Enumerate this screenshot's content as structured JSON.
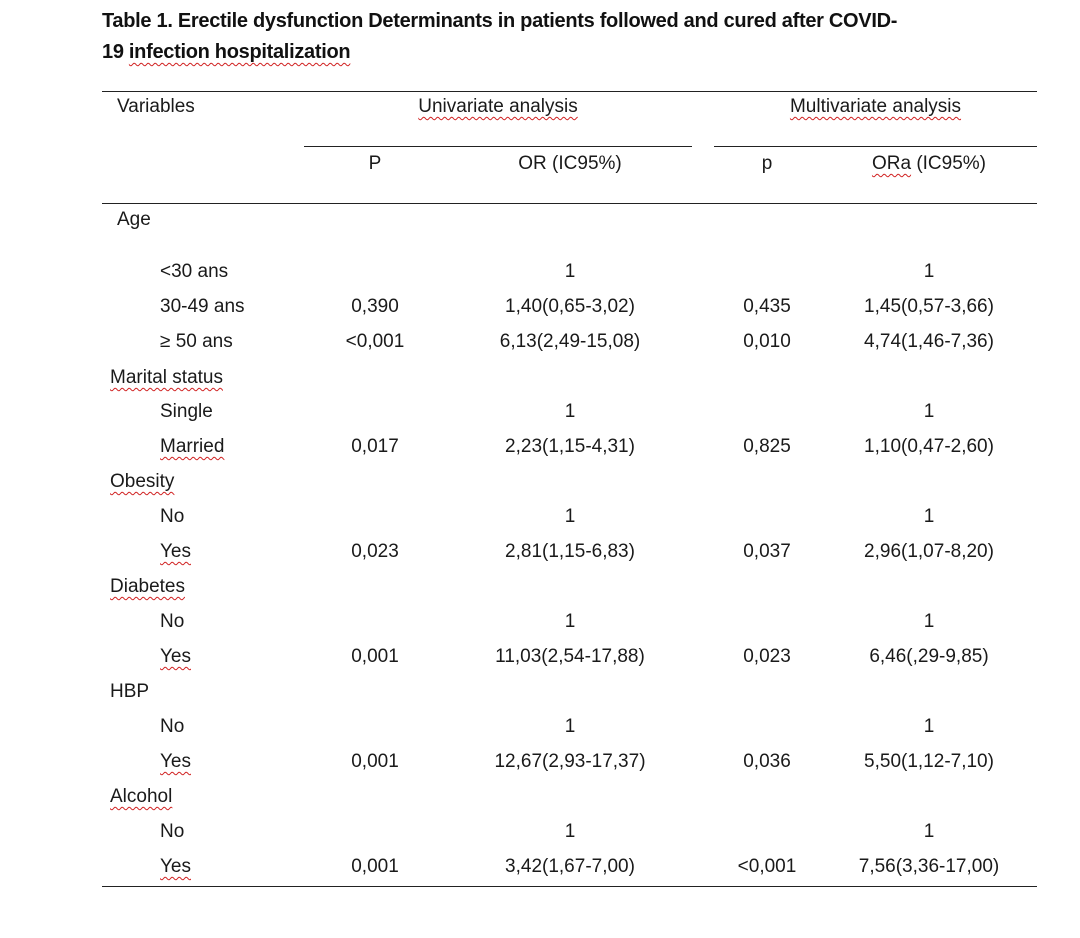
{
  "caption": {
    "line1": "Table 1. Erectile dysfunction Determinants in patients followed and cured after COVID-",
    "line2_prefix": "19 ",
    "line2_underlined": "infection  hospitalization"
  },
  "header": {
    "variables": "Variables",
    "univariate": "Univariate analysis",
    "multivariate": "Multivariate analysis",
    "p": "P",
    "or": "OR (IC95%)",
    "p2": "p",
    "ora_prefix": "ORa",
    "ora_suffix": " (IC95%)"
  },
  "rows": [
    {
      "label": "Age",
      "kind": "group",
      "p": "",
      "or": "",
      "p2": "",
      "ora": ""
    },
    {
      "label": "<30 ans",
      "kind": "sub",
      "p": "",
      "or": "1",
      "p2": "",
      "ora": "1"
    },
    {
      "label": "30-49 ans",
      "kind": "sub",
      "p": "0,390",
      "or": "1,40(0,65-3,02)",
      "p2": "0,435",
      "ora": "1,45(0,57-3,66)"
    },
    {
      "label": "≥ 50 ans",
      "kind": "sub",
      "p": "<0,001",
      "or": "6,13(2,49-15,08)",
      "p2": "0,010",
      "ora": "4,74(1,46-7,36)"
    },
    {
      "label": "Marital status",
      "kind": "group",
      "p": "",
      "or": "",
      "p2": "",
      "ora": ""
    },
    {
      "label": "Single",
      "kind": "sub",
      "p": "",
      "or": "1",
      "p2": "",
      "ora": "1"
    },
    {
      "label": "Married",
      "kind": "sub",
      "p": "0,017",
      "or": "2,23(1,15-4,31)",
      "p2": "0,825",
      "ora": "1,10(0,47-2,60)"
    },
    {
      "label": "Obesity",
      "kind": "group",
      "p": "",
      "or": "",
      "p2": "",
      "ora": ""
    },
    {
      "label": "No",
      "kind": "sub",
      "p": "",
      "or": "1",
      "p2": "",
      "ora": "1"
    },
    {
      "label": "Yes",
      "kind": "sub",
      "p": "0,023",
      "or": "2,81(1,15-6,83)",
      "p2": "0,037",
      "ora": "2,96(1,07-8,20)"
    },
    {
      "label": "Diabetes",
      "kind": "group",
      "p": "",
      "or": "",
      "p2": "",
      "ora": ""
    },
    {
      "label": "No",
      "kind": "sub",
      "p": "",
      "or": "1",
      "p2": "",
      "ora": "1"
    },
    {
      "label": "Yes",
      "kind": "sub",
      "p": "0,001",
      "or": "11,03(2,54-17,88)",
      "p2": "0,023",
      "ora": "6,46(,29-9,85)"
    },
    {
      "label": "HBP",
      "kind": "group",
      "p": "",
      "or": "",
      "p2": "",
      "ora": ""
    },
    {
      "label": "No",
      "kind": "sub",
      "p": "",
      "or": "1",
      "p2": "",
      "ora": "1"
    },
    {
      "label": "Yes",
      "kind": "sub",
      "p": "0,001",
      "or": "12,67(2,93-17,37)",
      "p2": "0,036",
      "ora": "5,50(1,12-7,10)"
    },
    {
      "label": "Alcohol",
      "kind": "group",
      "p": "",
      "or": "",
      "p2": "",
      "ora": ""
    },
    {
      "label": "No",
      "kind": "sub",
      "p": "",
      "or": "1",
      "p2": "",
      "ora": "1"
    },
    {
      "label": "Yes",
      "kind": "sub",
      "p": "0,001",
      "or": "3,42(1,67-7,00)",
      "p2": "<0,001",
      "ora": "7,56(3,36-17,00)"
    }
  ]
}
